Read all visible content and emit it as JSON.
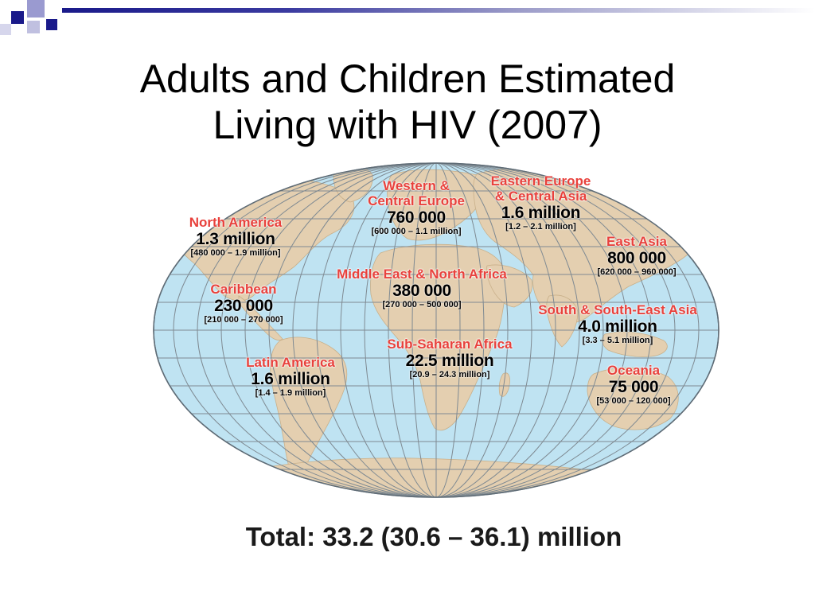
{
  "colors": {
    "ocean": "#bfe3f2",
    "land": "#e4cfb0",
    "grid": "#7f8a92",
    "region_label": "#e8413c",
    "accent_dark": "#1a1a8a"
  },
  "slide": {
    "title_line1": "Adults and Children Estimated",
    "title_line2": "Living with HIV (2007)",
    "total": "Total: 33.2 (30.6 – 36.1) million"
  },
  "regions": [
    {
      "name": "North America",
      "value": "1.3 million",
      "range": "[480 000 – 1.9 million]"
    },
    {
      "name": "Caribbean",
      "value": "230 000",
      "range": "[210 000 – 270 000]"
    },
    {
      "name": "Latin America",
      "value": "1.6 million",
      "range": "[1.4 – 1.9 million]"
    },
    {
      "name_line1": "Western &",
      "name_line2": "Central Europe",
      "value": "760 000",
      "range": "[600 000 – 1.1 million]"
    },
    {
      "name_line1": "Eastern Europe",
      "name_line2": "& Central Asia",
      "value": "1.6 million",
      "range": "[1.2 – 2.1 million]"
    },
    {
      "name": "Middle East & North Africa",
      "value": "380 000",
      "range": "[270 000 – 500 000]"
    },
    {
      "name": "Sub-Saharan Africa",
      "value": "22.5 million",
      "range": "[20.9 – 24.3 million]"
    },
    {
      "name": "East Asia",
      "value": "800 000",
      "range": "[620 000 – 960 000]"
    },
    {
      "name": "South & South-East Asia",
      "value": "4.0 million",
      "range": "[3.3 – 5.1 million]"
    },
    {
      "name": "Oceania",
      "value": "75 000",
      "range": "[53 000 – 120 000]"
    }
  ]
}
